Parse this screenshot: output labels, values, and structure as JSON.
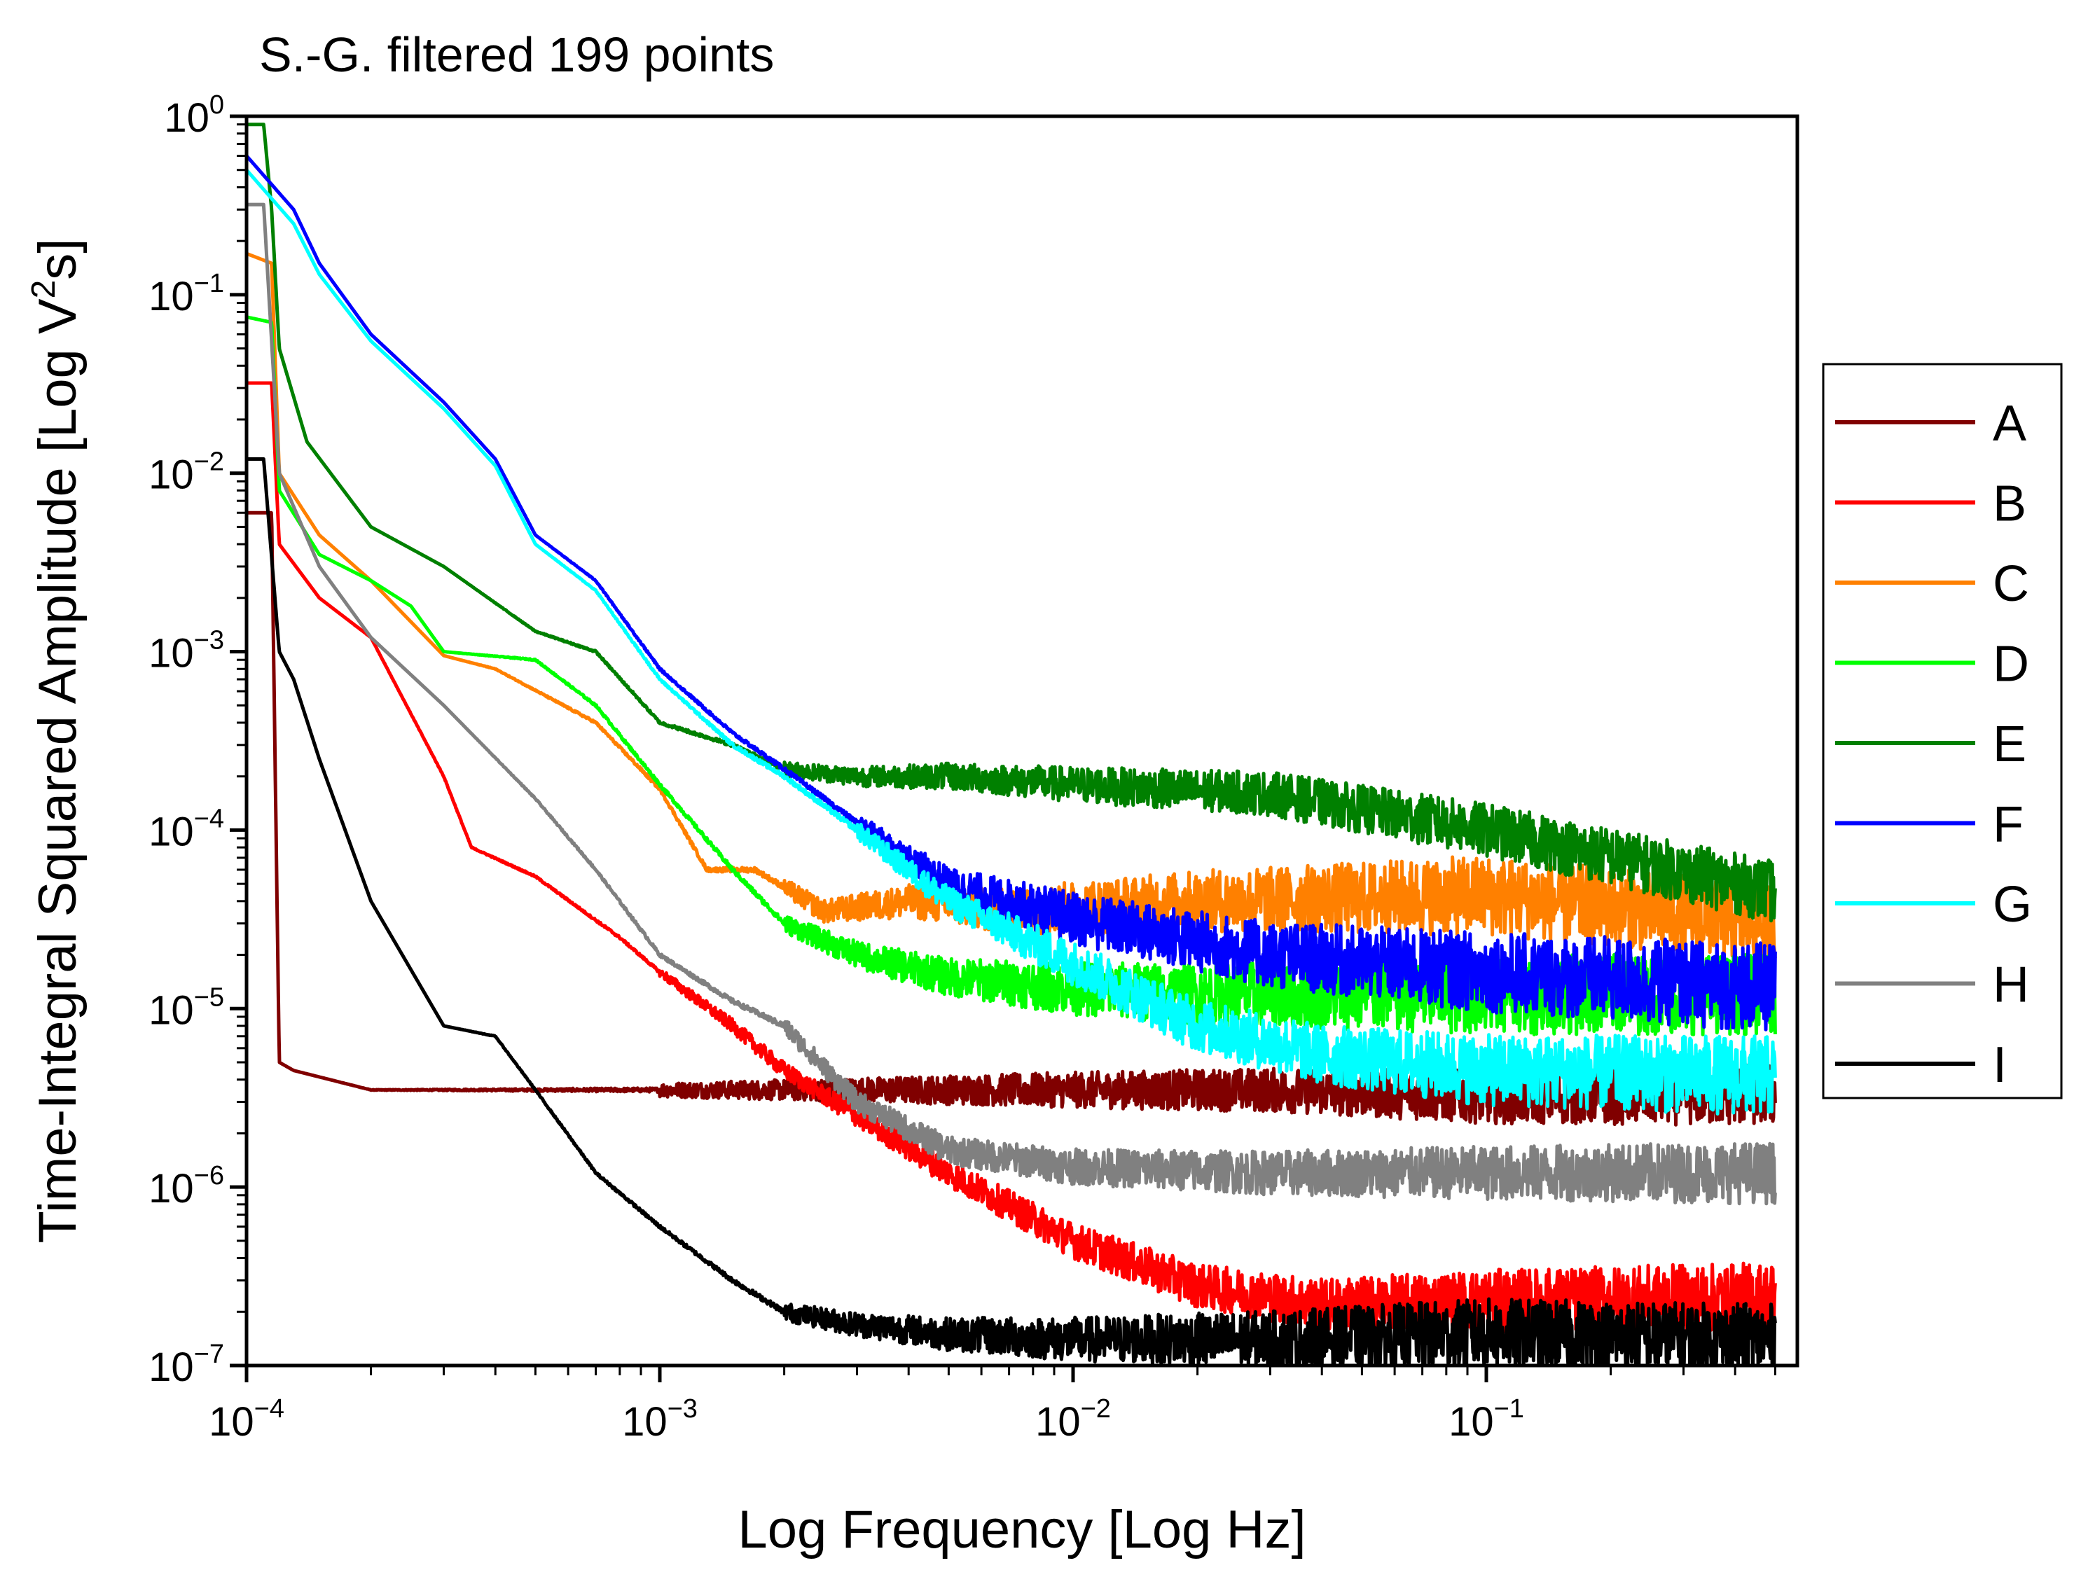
{
  "chart_data": {
    "type": "line",
    "title": "S.-G. filtered 199 points",
    "xlabel": "Log Frequency [Log Hz]",
    "ylabel": "Time-Integral Squared Amplitude [Log V²s]",
    "xscale": "log",
    "yscale": "log",
    "xlim": [
      0.0001,
      0.5
    ],
    "ylim": [
      1e-07,
      1
    ],
    "xticks": [
      {
        "base": "10",
        "exp": "−4"
      },
      {
        "base": "10",
        "exp": "−3"
      },
      {
        "base": "10",
        "exp": "−2"
      },
      {
        "base": "10",
        "exp": "−1"
      }
    ],
    "yticks": [
      {
        "base": "10",
        "exp": "0"
      },
      {
        "base": "10",
        "exp": "−1"
      },
      {
        "base": "10",
        "exp": "−2"
      },
      {
        "base": "10",
        "exp": "−3"
      },
      {
        "base": "10",
        "exp": "−4"
      },
      {
        "base": "10",
        "exp": "−5"
      },
      {
        "base": "10",
        "exp": "−6"
      },
      {
        "base": "10",
        "exp": "−7"
      }
    ],
    "legend_position": "right",
    "series": [
      {
        "name": "A",
        "color": "#800000",
        "points": [
          [
            0.0001,
            0.006
          ],
          [
            0.000115,
            0.006
          ],
          [
            0.00012,
            5e-06
          ],
          [
            0.00013,
            4.5e-06
          ],
          [
            0.0002,
            3.5e-06
          ],
          [
            0.0005,
            3.5e-06
          ],
          [
            0.001,
            3.5e-06
          ],
          [
            0.003,
            3.5e-06
          ],
          [
            0.01,
            3.5e-06
          ],
          [
            0.03,
            3.5e-06
          ],
          [
            0.1,
            3.2e-06
          ],
          [
            0.5,
            3.3e-06
          ]
        ],
        "noise": [
          [
            0.001,
            0.08
          ],
          [
            0.01,
            0.2
          ],
          [
            0.1,
            0.3
          ],
          [
            0.5,
            0.35
          ]
        ]
      },
      {
        "name": "B",
        "color": "#ff0000",
        "points": [
          [
            0.0001,
            0.032
          ],
          [
            0.000115,
            0.032
          ],
          [
            0.00012,
            0.004
          ],
          [
            0.00015,
            0.002
          ],
          [
            0.0002,
            0.0012
          ],
          [
            0.0003,
            0.0002
          ],
          [
            0.00035,
            8e-05
          ],
          [
            0.0005,
            5.5e-05
          ],
          [
            0.0008,
            2.5e-05
          ],
          [
            0.001,
            1.6e-05
          ],
          [
            0.0015,
            8e-06
          ],
          [
            0.002,
            4.5e-06
          ],
          [
            0.003,
            2.5e-06
          ],
          [
            0.005,
            1.2e-06
          ],
          [
            0.01,
            5e-07
          ],
          [
            0.02,
            2.8e-07
          ],
          [
            0.04,
            2.2e-07
          ],
          [
            0.1,
            2.3e-07
          ],
          [
            0.5,
            2.4e-07
          ]
        ],
        "noise": [
          [
            0.001,
            0.05
          ],
          [
            0.01,
            0.2
          ],
          [
            0.1,
            0.35
          ],
          [
            0.5,
            0.4
          ]
        ]
      },
      {
        "name": "C",
        "color": "#ff8000",
        "points": [
          [
            0.0001,
            0.17
          ],
          [
            0.000115,
            0.15
          ],
          [
            0.00012,
            0.01
          ],
          [
            0.00015,
            0.0045
          ],
          [
            0.0002,
            0.0025
          ],
          [
            0.0003,
            0.00095
          ],
          [
            0.0004,
            0.0008
          ],
          [
            0.0007,
            0.0004
          ],
          [
            0.001,
            0.00017
          ],
          [
            0.0013,
            6e-05
          ],
          [
            0.0017,
            6e-05
          ],
          [
            0.0025,
            3.5e-05
          ],
          [
            0.004,
            4e-05
          ],
          [
            0.007,
            3.5e-05
          ],
          [
            0.02,
            4e-05
          ],
          [
            0.1,
            4.3e-05
          ],
          [
            0.5,
            3e-05
          ]
        ],
        "noise": [
          [
            0.002,
            0.1
          ],
          [
            0.01,
            0.3
          ],
          [
            0.1,
            0.45
          ],
          [
            0.5,
            0.45
          ]
        ]
      },
      {
        "name": "D",
        "color": "#00ff00",
        "points": [
          [
            0.0001,
            0.075
          ],
          [
            0.000115,
            0.07
          ],
          [
            0.00012,
            0.008
          ],
          [
            0.00015,
            0.0035
          ],
          [
            0.0002,
            0.0025
          ],
          [
            0.00025,
            0.0018
          ],
          [
            0.0003,
            0.001
          ],
          [
            0.0005,
            0.0009
          ],
          [
            0.0007,
            0.0005
          ],
          [
            0.001,
            0.00018
          ],
          [
            0.0015,
            6e-05
          ],
          [
            0.002,
            3e-05
          ],
          [
            0.003,
            2e-05
          ],
          [
            0.005,
            1.5e-05
          ],
          [
            0.01,
            1.3e-05
          ],
          [
            0.02,
            1.2e-05
          ],
          [
            0.05,
            1.2e-05
          ],
          [
            0.1,
            1.2e-05
          ],
          [
            0.5,
            1.2e-05
          ]
        ],
        "noise": [
          [
            0.002,
            0.1
          ],
          [
            0.01,
            0.3
          ],
          [
            0.1,
            0.45
          ],
          [
            0.5,
            0.45
          ]
        ]
      },
      {
        "name": "E",
        "color": "#008000",
        "points": [
          [
            0.0001,
            0.9
          ],
          [
            0.00011,
            0.9
          ],
          [
            0.000115,
            0.3
          ],
          [
            0.00012,
            0.05
          ],
          [
            0.00014,
            0.015
          ],
          [
            0.0002,
            0.005
          ],
          [
            0.0003,
            0.003
          ],
          [
            0.0005,
            0.0013
          ],
          [
            0.0007,
            0.001
          ],
          [
            0.001,
            0.0004
          ],
          [
            0.0015,
            0.0003
          ],
          [
            0.002,
            0.00022
          ],
          [
            0.003,
            0.0002
          ],
          [
            0.005,
            0.0002
          ],
          [
            0.01,
            0.00018
          ],
          [
            0.03,
            0.00016
          ],
          [
            0.1,
            0.0001
          ],
          [
            0.5,
            4.5e-05
          ]
        ],
        "noise": [
          [
            0.002,
            0.08
          ],
          [
            0.01,
            0.2
          ],
          [
            0.1,
            0.3
          ],
          [
            0.5,
            0.35
          ]
        ]
      },
      {
        "name": "F",
        "color": "#0000ff",
        "points": [
          [
            0.0001,
            0.6
          ],
          [
            0.00013,
            0.3
          ],
          [
            0.00015,
            0.15
          ],
          [
            0.0002,
            0.06
          ],
          [
            0.0003,
            0.025
          ],
          [
            0.0004,
            0.012
          ],
          [
            0.0005,
            0.0045
          ],
          [
            0.0007,
            0.0025
          ],
          [
            0.001,
            0.0008
          ],
          [
            0.0015,
            0.00035
          ],
          [
            0.002,
            0.00022
          ],
          [
            0.003,
            0.00011
          ],
          [
            0.005,
            5e-05
          ],
          [
            0.01,
            3.2e-05
          ],
          [
            0.03,
            2e-05
          ],
          [
            0.1,
            1.6e-05
          ],
          [
            0.5,
            1.3e-05
          ]
        ],
        "noise": [
          [
            0.003,
            0.1
          ],
          [
            0.01,
            0.3
          ],
          [
            0.1,
            0.45
          ],
          [
            0.5,
            0.5
          ]
        ]
      },
      {
        "name": "G",
        "color": "#00ffff",
        "points": [
          [
            0.0001,
            0.5
          ],
          [
            0.00013,
            0.25
          ],
          [
            0.00015,
            0.13
          ],
          [
            0.0002,
            0.055
          ],
          [
            0.0003,
            0.023
          ],
          [
            0.0004,
            0.011
          ],
          [
            0.0005,
            0.004
          ],
          [
            0.0007,
            0.0022
          ],
          [
            0.001,
            0.0007
          ],
          [
            0.0015,
            0.0003
          ],
          [
            0.002,
            0.0002
          ],
          [
            0.003,
            0.0001
          ],
          [
            0.005,
            4e-05
          ],
          [
            0.01,
            1.8e-05
          ],
          [
            0.02,
            8e-06
          ],
          [
            0.04,
            5.5e-06
          ],
          [
            0.1,
            4.5e-06
          ],
          [
            0.5,
            4.2e-06
          ]
        ],
        "noise": [
          [
            0.003,
            0.1
          ],
          [
            0.01,
            0.25
          ],
          [
            0.1,
            0.4
          ],
          [
            0.5,
            0.45
          ]
        ]
      },
      {
        "name": "H",
        "color": "#808080",
        "points": [
          [
            0.0001,
            0.32
          ],
          [
            0.00011,
            0.32
          ],
          [
            0.00012,
            0.01
          ],
          [
            0.00015,
            0.003
          ],
          [
            0.0002,
            0.0012
          ],
          [
            0.0003,
            0.0005
          ],
          [
            0.0005,
            0.00015
          ],
          [
            0.0007,
            6e-05
          ],
          [
            0.001,
            2e-05
          ],
          [
            0.0015,
            1.1e-05
          ],
          [
            0.002,
            8e-06
          ],
          [
            0.003,
            3e-06
          ],
          [
            0.005,
            1.6e-06
          ],
          [
            0.01,
            1.3e-06
          ],
          [
            0.03,
            1.2e-06
          ],
          [
            0.1,
            1.2e-06
          ],
          [
            0.5,
            1.2e-06
          ]
        ],
        "noise": [
          [
            0.002,
            0.1
          ],
          [
            0.01,
            0.2
          ],
          [
            0.1,
            0.3
          ],
          [
            0.5,
            0.35
          ]
        ]
      },
      {
        "name": "I",
        "color": "#000000",
        "points": [
          [
            0.0001,
            0.012
          ],
          [
            0.00011,
            0.012
          ],
          [
            0.00012,
            0.001
          ],
          [
            0.00013,
            0.0007
          ],
          [
            0.00015,
            0.00025
          ],
          [
            0.0002,
            4e-05
          ],
          [
            0.0003,
            8e-06
          ],
          [
            0.0004,
            7e-06
          ],
          [
            0.0005,
            3.5e-06
          ],
          [
            0.0007,
            1.2e-06
          ],
          [
            0.001,
            6e-07
          ],
          [
            0.0015,
            3e-07
          ],
          [
            0.002,
            2e-07
          ],
          [
            0.003,
            1.7e-07
          ],
          [
            0.005,
            1.5e-07
          ],
          [
            0.01,
            1.4e-07
          ],
          [
            0.03,
            1.4e-07
          ],
          [
            0.1,
            1.5e-07
          ],
          [
            0.5,
            1.4e-07
          ]
        ],
        "noise": [
          [
            0.002,
            0.1
          ],
          [
            0.01,
            0.25
          ],
          [
            0.1,
            0.4
          ],
          [
            0.5,
            0.4
          ]
        ]
      }
    ]
  }
}
